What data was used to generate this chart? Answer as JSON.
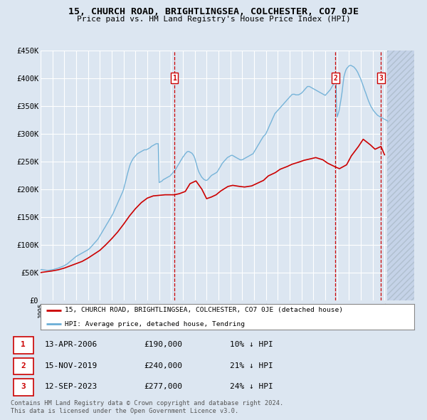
{
  "title": "15, CHURCH ROAD, BRIGHTLINGSEA, COLCHESTER, CO7 0JE",
  "subtitle": "Price paid vs. HM Land Registry's House Price Index (HPI)",
  "footer_line1": "Contains HM Land Registry data © Crown copyright and database right 2024.",
  "footer_line2": "This data is licensed under the Open Government Licence v3.0.",
  "legend_property": "15, CHURCH ROAD, BRIGHTLINGSEA, COLCHESTER, CO7 0JE (detached house)",
  "legend_hpi": "HPI: Average price, detached house, Tendring",
  "transactions": [
    {
      "num": 1,
      "date": "13-APR-2006",
      "price": "£190,000",
      "hpi": "10% ↓ HPI",
      "year": 2006.28
    },
    {
      "num": 2,
      "date": "15-NOV-2019",
      "price": "£240,000",
      "hpi": "21% ↓ HPI",
      "year": 2019.87
    },
    {
      "num": 3,
      "date": "12-SEP-2023",
      "price": "£277,000",
      "hpi": "24% ↓ HPI",
      "year": 2023.7
    }
  ],
  "ylim": [
    0,
    450000
  ],
  "yticks": [
    0,
    50000,
    100000,
    150000,
    200000,
    250000,
    300000,
    350000,
    400000,
    450000
  ],
  "ytick_labels": [
    "£0",
    "£50K",
    "£100K",
    "£150K",
    "£200K",
    "£250K",
    "£300K",
    "£350K",
    "£400K",
    "£450K"
  ],
  "xlim_start": 1995.0,
  "xlim_end": 2026.5,
  "bg_color": "#dce6f1",
  "plot_bg_color": "#dce6f1",
  "grid_color": "#ffffff",
  "hpi_line_color": "#6baed6",
  "property_line_color": "#cc0000",
  "vline_color": "#cc0000",
  "hpi_data_years": [
    1995.0,
    1995.08,
    1995.17,
    1995.25,
    1995.33,
    1995.42,
    1995.5,
    1995.58,
    1995.67,
    1995.75,
    1995.83,
    1995.92,
    1996.0,
    1996.08,
    1996.17,
    1996.25,
    1996.33,
    1996.42,
    1996.5,
    1996.58,
    1996.67,
    1996.75,
    1996.83,
    1996.92,
    1997.0,
    1997.08,
    1997.17,
    1997.25,
    1997.33,
    1997.42,
    1997.5,
    1997.58,
    1997.67,
    1997.75,
    1997.83,
    1997.92,
    1998.0,
    1998.08,
    1998.17,
    1998.25,
    1998.33,
    1998.42,
    1998.5,
    1998.58,
    1998.67,
    1998.75,
    1998.83,
    1998.92,
    1999.0,
    1999.08,
    1999.17,
    1999.25,
    1999.33,
    1999.42,
    1999.5,
    1999.58,
    1999.67,
    1999.75,
    1999.83,
    1999.92,
    2000.0,
    2000.08,
    2000.17,
    2000.25,
    2000.33,
    2000.42,
    2000.5,
    2000.58,
    2000.67,
    2000.75,
    2000.83,
    2000.92,
    2001.0,
    2001.08,
    2001.17,
    2001.25,
    2001.33,
    2001.42,
    2001.5,
    2001.58,
    2001.67,
    2001.75,
    2001.83,
    2001.92,
    2002.0,
    2002.08,
    2002.17,
    2002.25,
    2002.33,
    2002.42,
    2002.5,
    2002.58,
    2002.67,
    2002.75,
    2002.83,
    2002.92,
    2003.0,
    2003.08,
    2003.17,
    2003.25,
    2003.33,
    2003.42,
    2003.5,
    2003.58,
    2003.67,
    2003.75,
    2003.83,
    2003.92,
    2004.0,
    2004.08,
    2004.17,
    2004.25,
    2004.33,
    2004.42,
    2004.5,
    2004.58,
    2004.67,
    2004.75,
    2004.83,
    2004.92,
    2005.0,
    2005.08,
    2005.17,
    2005.25,
    2005.33,
    2005.42,
    2005.5,
    2005.58,
    2005.67,
    2005.75,
    2005.83,
    2005.92,
    2006.0,
    2006.08,
    2006.17,
    2006.25,
    2006.33,
    2006.42,
    2006.5,
    2006.58,
    2006.67,
    2006.75,
    2006.83,
    2006.92,
    2007.0,
    2007.08,
    2007.17,
    2007.25,
    2007.33,
    2007.42,
    2007.5,
    2007.58,
    2007.67,
    2007.75,
    2007.83,
    2007.92,
    2008.0,
    2008.08,
    2008.17,
    2008.25,
    2008.33,
    2008.42,
    2008.5,
    2008.58,
    2008.67,
    2008.75,
    2008.83,
    2008.92,
    2009.0,
    2009.08,
    2009.17,
    2009.25,
    2009.33,
    2009.42,
    2009.5,
    2009.58,
    2009.67,
    2009.75,
    2009.83,
    2009.92,
    2010.0,
    2010.08,
    2010.17,
    2010.25,
    2010.33,
    2010.42,
    2010.5,
    2010.58,
    2010.67,
    2010.75,
    2010.83,
    2010.92,
    2011.0,
    2011.08,
    2011.17,
    2011.25,
    2011.33,
    2011.42,
    2011.5,
    2011.58,
    2011.67,
    2011.75,
    2011.83,
    2011.92,
    2012.0,
    2012.08,
    2012.17,
    2012.25,
    2012.33,
    2012.42,
    2012.5,
    2012.58,
    2012.67,
    2012.75,
    2012.83,
    2012.92,
    2013.0,
    2013.08,
    2013.17,
    2013.25,
    2013.33,
    2013.42,
    2013.5,
    2013.58,
    2013.67,
    2013.75,
    2013.83,
    2013.92,
    2014.0,
    2014.08,
    2014.17,
    2014.25,
    2014.33,
    2014.42,
    2014.5,
    2014.58,
    2014.67,
    2014.75,
    2014.83,
    2014.92,
    2015.0,
    2015.08,
    2015.17,
    2015.25,
    2015.33,
    2015.42,
    2015.5,
    2015.58,
    2015.67,
    2015.75,
    2015.83,
    2015.92,
    2016.0,
    2016.08,
    2016.17,
    2016.25,
    2016.33,
    2016.42,
    2016.5,
    2016.58,
    2016.67,
    2016.75,
    2016.83,
    2016.92,
    2017.0,
    2017.08,
    2017.17,
    2017.25,
    2017.33,
    2017.42,
    2017.5,
    2017.58,
    2017.67,
    2017.75,
    2017.83,
    2017.92,
    2018.0,
    2018.08,
    2018.17,
    2018.25,
    2018.33,
    2018.42,
    2018.5,
    2018.58,
    2018.67,
    2018.75,
    2018.83,
    2018.92,
    2019.0,
    2019.08,
    2019.17,
    2019.25,
    2019.33,
    2019.42,
    2019.5,
    2019.58,
    2019.67,
    2019.75,
    2019.83,
    2019.92,
    2020.0,
    2020.08,
    2020.17,
    2020.25,
    2020.33,
    2020.42,
    2020.5,
    2020.58,
    2020.67,
    2020.75,
    2020.83,
    2020.92,
    2021.0,
    2021.08,
    2021.17,
    2021.25,
    2021.33,
    2021.42,
    2021.5,
    2021.58,
    2021.67,
    2021.75,
    2021.83,
    2021.92,
    2022.0,
    2022.08,
    2022.17,
    2022.25,
    2022.33,
    2022.42,
    2022.5,
    2022.58,
    2022.67,
    2022.75,
    2022.83,
    2022.92,
    2023.0,
    2023.08,
    2023.17,
    2023.25,
    2023.33,
    2023.42,
    2023.5,
    2023.58,
    2023.67,
    2023.75,
    2023.83,
    2023.92,
    2024.0,
    2024.08,
    2024.17,
    2024.25
  ],
  "hpi_data_values": [
    55000,
    55500,
    55200,
    54800,
    54500,
    54200,
    54000,
    53800,
    54000,
    54200,
    54500,
    54800,
    55000,
    55500,
    56000,
    56500,
    57000,
    57500,
    58000,
    58800,
    59500,
    60000,
    60800,
    61500,
    62500,
    63500,
    64500,
    65500,
    67000,
    68500,
    70000,
    71500,
    73000,
    74500,
    76000,
    77500,
    79000,
    80000,
    81000,
    82000,
    83000,
    84000,
    85000,
    86000,
    87000,
    88000,
    89000,
    90000,
    91000,
    92500,
    94000,
    96000,
    98000,
    100000,
    102000,
    104000,
    106000,
    108000,
    110000,
    113000,
    116000,
    119000,
    122000,
    125000,
    128000,
    131000,
    134000,
    137000,
    140000,
    143000,
    146000,
    149000,
    152000,
    155000,
    159000,
    163000,
    167000,
    171000,
    175000,
    179000,
    183000,
    187000,
    191000,
    195000,
    200000,
    207000,
    214000,
    221000,
    228000,
    235000,
    241000,
    246000,
    250000,
    253000,
    256000,
    258000,
    260000,
    262000,
    264000,
    265000,
    266000,
    267000,
    268000,
    269000,
    270000,
    271000,
    271000,
    271000,
    272000,
    273000,
    274000,
    275000,
    277000,
    278000,
    279000,
    280000,
    281000,
    282000,
    282000,
    282000,
    212000,
    213000,
    214000,
    215000,
    217000,
    218000,
    219000,
    220000,
    221000,
    222000,
    223000,
    224000,
    226000,
    228000,
    230000,
    232000,
    234000,
    237000,
    240000,
    243000,
    246000,
    249000,
    252000,
    255000,
    258000,
    260000,
    263000,
    265000,
    267000,
    268000,
    268000,
    267000,
    266000,
    265000,
    263000,
    260000,
    256000,
    250000,
    243000,
    237000,
    232000,
    228000,
    225000,
    222000,
    220000,
    218000,
    217000,
    216000,
    216000,
    217000,
    219000,
    221000,
    223000,
    225000,
    226000,
    227000,
    228000,
    229000,
    230000,
    232000,
    235000,
    238000,
    241000,
    244000,
    247000,
    249000,
    251000,
    253000,
    255000,
    257000,
    258000,
    259000,
    260000,
    261000,
    261000,
    260000,
    259000,
    258000,
    257000,
    256000,
    255000,
    254000,
    253000,
    253000,
    253000,
    254000,
    255000,
    256000,
    257000,
    258000,
    259000,
    260000,
    261000,
    262000,
    263000,
    264000,
    267000,
    270000,
    273000,
    276000,
    279000,
    282000,
    285000,
    288000,
    291000,
    294000,
    296000,
    298000,
    300000,
    304000,
    308000,
    312000,
    316000,
    320000,
    324000,
    328000,
    332000,
    336000,
    338000,
    340000,
    342000,
    344000,
    346000,
    348000,
    350000,
    352000,
    354000,
    356000,
    358000,
    360000,
    362000,
    364000,
    366000,
    368000,
    370000,
    371000,
    371000,
    371000,
    370000,
    370000,
    370000,
    370000,
    371000,
    372000,
    373000,
    375000,
    377000,
    379000,
    381000,
    383000,
    385000,
    385000,
    385000,
    384000,
    383000,
    382000,
    381000,
    380000,
    379000,
    378000,
    377000,
    376000,
    375000,
    374000,
    373000,
    372000,
    371000,
    370000,
    369000,
    371000,
    373000,
    375000,
    377000,
    379000,
    382000,
    385000,
    388000,
    391000,
    394000,
    397000,
    330000,
    335000,
    342000,
    352000,
    362000,
    375000,
    390000,
    403000,
    410000,
    415000,
    418000,
    420000,
    422000,
    423000,
    423000,
    422000,
    421000,
    420000,
    418000,
    416000,
    413000,
    410000,
    406000,
    402000,
    398000,
    393000,
    388000,
    383000,
    378000,
    373000,
    368000,
    363000,
    358000,
    354000,
    350000,
    347000,
    344000,
    341000,
    339000,
    337000,
    335000,
    333000,
    332000,
    331000,
    330000,
    329000,
    328000,
    327000,
    326000,
    325000,
    324000,
    323000
  ],
  "prop_data_years": [
    1995.0,
    1995.5,
    1996.0,
    1996.5,
    1997.0,
    1997.5,
    1998.0,
    1998.5,
    1999.0,
    1999.5,
    2000.0,
    2000.5,
    2001.0,
    2001.5,
    2002.0,
    2002.5,
    2003.0,
    2003.5,
    2004.0,
    2004.5,
    2005.0,
    2005.5,
    2005.9,
    2006.28,
    2006.7,
    2007.2,
    2007.6,
    2008.1,
    2008.6,
    2009.0,
    2009.4,
    2009.8,
    2010.2,
    2010.8,
    2011.2,
    2011.8,
    2012.2,
    2012.8,
    2013.2,
    2013.8,
    2014.2,
    2014.8,
    2015.2,
    2015.8,
    2016.2,
    2016.8,
    2017.2,
    2017.8,
    2018.2,
    2018.8,
    2019.2,
    2019.87,
    2020.2,
    2020.8,
    2021.2,
    2021.8,
    2022.2,
    2022.8,
    2023.2,
    2023.7,
    2024.0
  ],
  "prop_data_values": [
    50000,
    51500,
    53000,
    55000,
    58000,
    62000,
    66000,
    70000,
    76000,
    83000,
    90000,
    100000,
    111000,
    123000,
    137000,
    152000,
    165000,
    176000,
    184000,
    188000,
    189000,
    190000,
    190000,
    190000,
    192000,
    196000,
    210000,
    215000,
    200000,
    183000,
    186000,
    190000,
    197000,
    205000,
    207000,
    205000,
    204000,
    206000,
    210000,
    216000,
    224000,
    230000,
    236000,
    241000,
    245000,
    249000,
    252000,
    255000,
    257000,
    253000,
    247000,
    240000,
    237000,
    244000,
    260000,
    277000,
    290000,
    280000,
    272000,
    277000,
    262000
  ]
}
